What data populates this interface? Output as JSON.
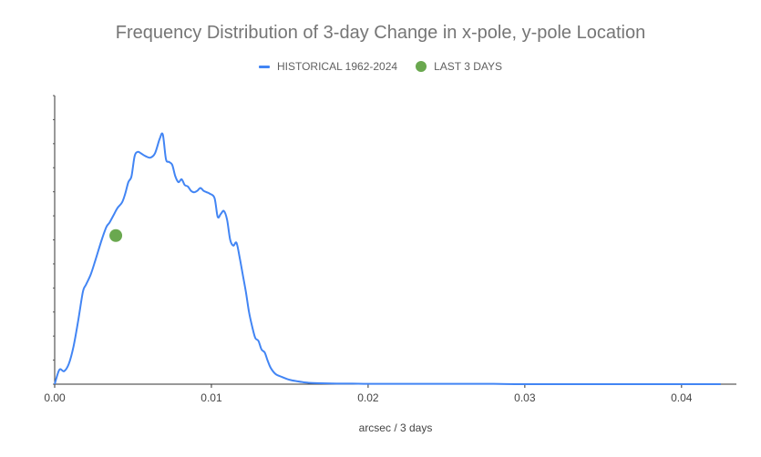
{
  "chart_data": {
    "type": "line",
    "title": "Frequency Distribution of 3-day Change in x-pole, y-pole Location",
    "xlabel": "arcsec / 3 days",
    "ylabel": "",
    "xlim": [
      0,
      0.0435
    ],
    "ylim": [
      0,
      1
    ],
    "x_ticks": [
      "0.00",
      "0.01",
      "0.02",
      "0.03",
      "0.04"
    ],
    "x_tick_values": [
      0,
      0.01,
      0.02,
      0.03,
      0.04
    ],
    "y_tick_labels_shown": false,
    "grid": false,
    "legend_position": "top",
    "series": [
      {
        "name": "HISTORICAL 1962-2024",
        "color": "#4285f4",
        "x": [
          0,
          0.0003,
          0.0006,
          0.0009,
          0.0012,
          0.0015,
          0.0018,
          0.002,
          0.0023,
          0.0026,
          0.003,
          0.0033,
          0.0035,
          0.0038,
          0.004,
          0.0043,
          0.0045,
          0.0047,
          0.0049,
          0.0051,
          0.0053,
          0.0055,
          0.0058,
          0.0061,
          0.0064,
          0.0067,
          0.0069,
          0.0071,
          0.0073,
          0.0075,
          0.0077,
          0.0079,
          0.0081,
          0.0083,
          0.0085,
          0.0087,
          0.0089,
          0.0091,
          0.0093,
          0.0095,
          0.0097,
          0.0099,
          0.0102,
          0.0104,
          0.0106,
          0.0108,
          0.011,
          0.0112,
          0.0114,
          0.0116,
          0.0118,
          0.012,
          0.0122,
          0.0124,
          0.0126,
          0.0128,
          0.013,
          0.0132,
          0.0134,
          0.0136,
          0.0138,
          0.0141,
          0.0145,
          0.015,
          0.0155,
          0.016,
          0.0165,
          0.017,
          0.018,
          0.019,
          0.02,
          0.022,
          0.025,
          0.028,
          0.03,
          0.035,
          0.04,
          0.0425
        ],
        "values": [
          0.0,
          0.05,
          0.045,
          0.07,
          0.13,
          0.22,
          0.32,
          0.345,
          0.38,
          0.43,
          0.5,
          0.545,
          0.56,
          0.59,
          0.61,
          0.63,
          0.66,
          0.7,
          0.72,
          0.79,
          0.805,
          0.8,
          0.79,
          0.785,
          0.8,
          0.85,
          0.865,
          0.78,
          0.77,
          0.76,
          0.72,
          0.7,
          0.71,
          0.69,
          0.685,
          0.67,
          0.665,
          0.67,
          0.68,
          0.67,
          0.665,
          0.66,
          0.645,
          0.58,
          0.59,
          0.6,
          0.57,
          0.5,
          0.48,
          0.49,
          0.44,
          0.38,
          0.32,
          0.25,
          0.2,
          0.16,
          0.15,
          0.12,
          0.11,
          0.08,
          0.055,
          0.035,
          0.025,
          0.015,
          0.01,
          0.006,
          0.004,
          0.003,
          0.002,
          0.002,
          0.001,
          0.001,
          0.001,
          0.001,
          0.0,
          0.0,
          0.0,
          0.0
        ]
      },
      {
        "name": "LAST 3 DAYS",
        "color": "#6aa84f",
        "x": [
          0.0039
        ],
        "values": [
          0.515
        ]
      }
    ]
  }
}
